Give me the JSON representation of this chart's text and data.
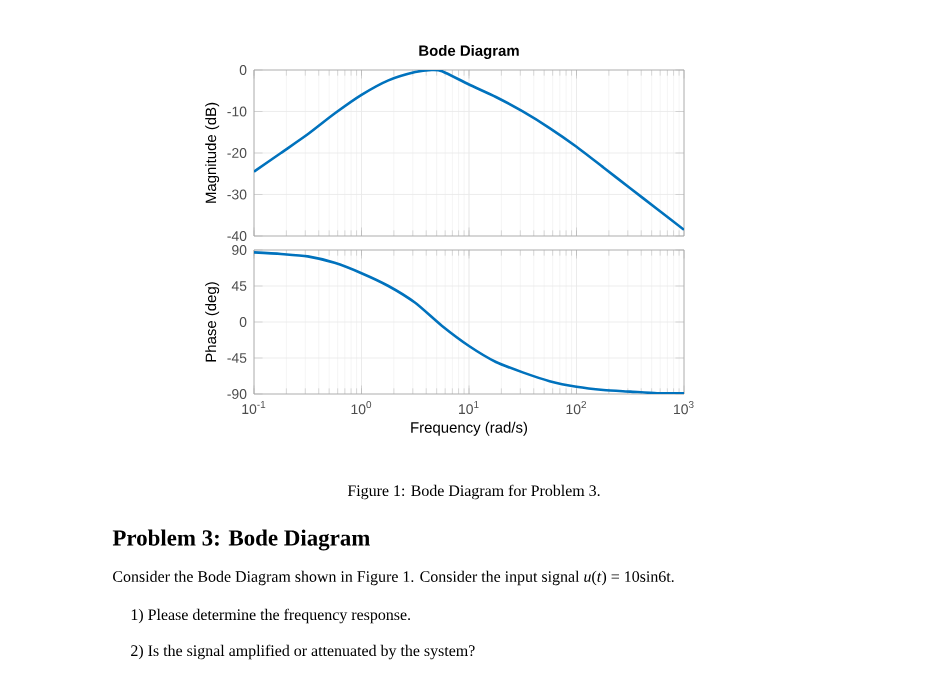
{
  "chart_data": [
    {
      "type": "line",
      "title": "Bode Diagram",
      "ylabel": "Magnitude (dB)",
      "log": "x",
      "grid": true,
      "tick_labels": "y",
      "xlim": [
        0.1,
        1000
      ],
      "ylim": [
        -40,
        0
      ],
      "xticks": [
        {
          "value": 0.1,
          "label": null
        },
        {
          "value": 1,
          "label": null
        },
        {
          "value": 10,
          "label": null
        },
        {
          "value": 100,
          "label": null
        },
        {
          "value": 1000,
          "label": null
        }
      ],
      "yticks": [
        0,
        -10,
        -20,
        -30,
        -40
      ],
      "series": [
        {
          "color": "#0072bd",
          "x": [
            0.1,
            0.178,
            0.316,
            0.562,
            1,
            1.78,
            3.16,
            4.5,
            5.62,
            10,
            17.8,
            31.6,
            56.2,
            100,
            178,
            316,
            562,
            1000
          ],
          "values": [
            -24.5,
            -20,
            -15.5,
            -10.5,
            -6,
            -2.5,
            -0.5,
            0,
            -0.3,
            -3.5,
            -6.5,
            -10,
            -14,
            -18.5,
            -23.5,
            -28.5,
            -33.5,
            -38.5
          ]
        }
      ]
    },
    {
      "type": "line",
      "xlabel": "Frequency  (rad/s)",
      "ylabel": "Phase (deg)",
      "log": "x",
      "grid": true,
      "xlim": [
        0.1,
        1000
      ],
      "ylim": [
        -90,
        90
      ],
      "xticks": [
        {
          "value": 0.1,
          "label": "10$^{-1}$"
        },
        {
          "value": 1,
          "label": "10$^{0}$"
        },
        {
          "value": 10,
          "label": "10$^{1}$"
        },
        {
          "value": 100,
          "label": "10$^{2}$"
        },
        {
          "value": 1000,
          "label": "10$^{3}$"
        }
      ],
      "yticks": [
        90,
        45,
        0,
        -45,
        -90
      ],
      "series": [
        {
          "color": "#0072bd",
          "x": [
            0.1,
            0.178,
            0.316,
            0.562,
            1,
            1.78,
            3.16,
            5.62,
            10,
            17.8,
            31.6,
            56.2,
            100,
            178,
            316,
            562,
            1000
          ],
          "values": [
            87,
            85,
            82,
            74,
            61,
            45,
            24,
            -5,
            -30,
            -50,
            -63,
            -74,
            -81,
            -85,
            -87,
            -89,
            -89
          ]
        }
      ],
      "annotations": [
        "Figure 1: Bode Diagram for Problem 3.",
        "Problem 3: Bode Diagram",
        "Consider the Bode Diagram shown in Figure 1. Consider the input signal *u*(*t*) = 10sin6t.",
        "1) Please determine the frequency response.",
        "2) Is the signal amplified or attenuated by the system?"
      ]
    }
  ]
}
